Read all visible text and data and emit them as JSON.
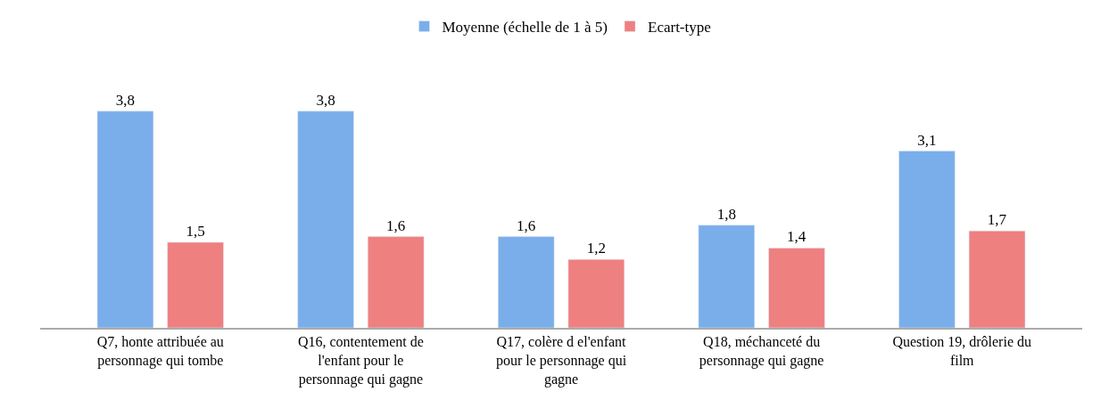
{
  "chart_data": {
    "type": "bar",
    "categories": [
      "Q7, honte attribuée au personnage qui tombe",
      "Q16, contentement de l'enfant pour le personnage qui gagne",
      "Q17, colère d el'enfant pour le personnage qui gagne",
      "Q18, méchanceté du personnage qui gagne",
      "Question 19, drôlerie du film"
    ],
    "series": [
      {
        "name": "Moyenne (échelle de 1 à 5)",
        "color": "#7aaeea",
        "values": [
          3.8,
          3.8,
          1.6,
          1.8,
          3.1
        ],
        "value_labels": [
          "3,8",
          "3,8",
          "1,6",
          "1,8",
          "3,1"
        ]
      },
      {
        "name": "Ecart-type",
        "color": "#ee8080",
        "values": [
          1.5,
          1.6,
          1.2,
          1.4,
          1.7
        ],
        "value_labels": [
          "1,5",
          "1,6",
          "1,2",
          "1,4",
          "1,7"
        ]
      }
    ],
    "legend": "top",
    "tick_labels": "x"
  }
}
